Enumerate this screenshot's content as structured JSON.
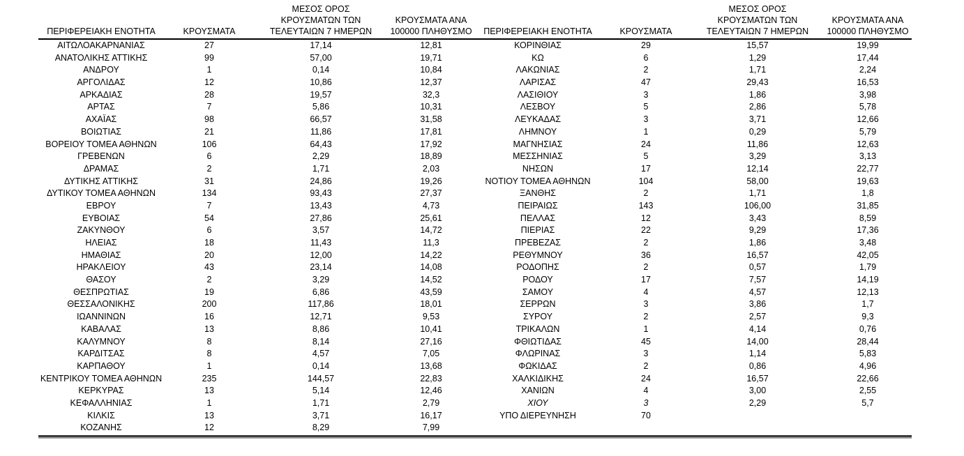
{
  "table": {
    "columns": [
      {
        "id": "region",
        "label_lines": [
          "ΠΕΡΙΦΕΡΕΙΑΚΗ ΕΝΟΤΗΤΑ"
        ]
      },
      {
        "id": "cases",
        "label_lines": [
          "ΚΡΟΥΣΜΑΤΑ"
        ]
      },
      {
        "id": "avg7",
        "label_lines": [
          "ΜΕΣΟΣ ΟΡΟΣ",
          "ΚΡΟΥΣΜΑΤΩΝ ΤΩΝ",
          "ΤΕΛΕΥΤΑΙΩΝ 7 ΗΜΕΡΩΝ"
        ]
      },
      {
        "id": "per100k",
        "label_lines": [
          "ΚΡΟΥΣΜΑΤΑ ΑΝΑ",
          "100000 ΠΛΗΘΥΣΜΟ"
        ]
      }
    ],
    "left_rows": [
      {
        "name": "ΑΙΤΩΛΟΑΚΑΡΝΑΝΙΑΣ",
        "cases": "27",
        "avg7": "17,14",
        "per100k": "12,81"
      },
      {
        "name": "ΑΝΑΤΟΛΙΚΗΣ ΑΤΤΙΚΗΣ",
        "cases": "99",
        "avg7": "57,00",
        "per100k": "19,71"
      },
      {
        "name": "ΑΝΔΡΟΥ",
        "cases": "1",
        "avg7": "0,14",
        "per100k": "10,84"
      },
      {
        "name": "ΑΡΓΟΛΙΔΑΣ",
        "cases": "12",
        "avg7": "10,86",
        "per100k": "12,37"
      },
      {
        "name": "ΑΡΚΑΔΙΑΣ",
        "cases": "28",
        "avg7": "19,57",
        "per100k": "32,3"
      },
      {
        "name": "ΑΡΤΑΣ",
        "cases": "7",
        "avg7": "5,86",
        "per100k": "10,31"
      },
      {
        "name": "ΑΧΑΪΑΣ",
        "cases": "98",
        "avg7": "66,57",
        "per100k": "31,58"
      },
      {
        "name": "ΒΟΙΩΤΙΑΣ",
        "cases": "21",
        "avg7": "11,86",
        "per100k": "17,81"
      },
      {
        "name": "ΒΟΡΕΙΟΥ ΤΟΜΕΑ ΑΘΗΝΩΝ",
        "cases": "106",
        "avg7": "64,43",
        "per100k": "17,92"
      },
      {
        "name": "ΓΡΕΒΕΝΩΝ",
        "cases": "6",
        "avg7": "2,29",
        "per100k": "18,89"
      },
      {
        "name": "ΔΡΑΜΑΣ",
        "cases": "2",
        "avg7": "1,71",
        "per100k": "2,03"
      },
      {
        "name": "ΔΥΤΙΚΗΣ ΑΤΤΙΚΗΣ",
        "cases": "31",
        "avg7": "24,86",
        "per100k": "19,26"
      },
      {
        "name": "ΔΥΤΙΚΟΥ ΤΟΜΕΑ ΑΘΗΝΩΝ",
        "cases": "134",
        "avg7": "93,43",
        "per100k": "27,37"
      },
      {
        "name": "ΕΒΡΟΥ",
        "cases": "7",
        "avg7": "13,43",
        "per100k": "4,73"
      },
      {
        "name": "ΕΥΒΟΙΑΣ",
        "cases": "54",
        "avg7": "27,86",
        "per100k": "25,61"
      },
      {
        "name": "ΖΑΚΥΝΘΟΥ",
        "cases": "6",
        "avg7": "3,57",
        "per100k": "14,72"
      },
      {
        "name": "ΗΛΕΙΑΣ",
        "cases": "18",
        "avg7": "11,43",
        "per100k": "11,3"
      },
      {
        "name": "ΗΜΑΘΙΑΣ",
        "cases": "20",
        "avg7": "12,00",
        "per100k": "14,22"
      },
      {
        "name": "ΗΡΑΚΛΕΙΟΥ",
        "cases": "43",
        "avg7": "23,14",
        "per100k": "14,08"
      },
      {
        "name": "ΘΑΣΟΥ",
        "cases": "2",
        "avg7": "3,29",
        "per100k": "14,52"
      },
      {
        "name": "ΘΕΣΠΡΩΤΙΑΣ",
        "cases": "19",
        "avg7": "6,86",
        "per100k": "43,59"
      },
      {
        "name": "ΘΕΣΣΑΛΟΝΙΚΗΣ",
        "cases": "200",
        "avg7": "117,86",
        "per100k": "18,01"
      },
      {
        "name": "ΙΩΑΝΝΙΝΩΝ",
        "cases": "16",
        "avg7": "12,71",
        "per100k": "9,53"
      },
      {
        "name": "ΚΑΒΑΛΑΣ",
        "cases": "13",
        "avg7": "8,86",
        "per100k": "10,41"
      },
      {
        "name": "ΚΑΛΥΜΝΟΥ",
        "cases": "8",
        "avg7": "8,14",
        "per100k": "27,16"
      },
      {
        "name": "ΚΑΡΔΙΤΣΑΣ",
        "cases": "8",
        "avg7": "4,57",
        "per100k": "7,05"
      },
      {
        "name": "ΚΑΡΠΑΘΟΥ",
        "cases": "1",
        "avg7": "0,14",
        "per100k": "13,68"
      },
      {
        "name": "ΚΕΝΤΡΙΚΟΥ ΤΟΜΕΑ ΑΘΗΝΩΝ",
        "cases": "235",
        "avg7": "144,57",
        "per100k": "22,83"
      },
      {
        "name": "ΚΕΡΚΥΡΑΣ",
        "cases": "13",
        "avg7": "5,14",
        "per100k": "12,46"
      },
      {
        "name": "ΚΕΦΑΛΛΗΝΙΑΣ",
        "cases": "1",
        "avg7": "1,71",
        "per100k": "2,79"
      },
      {
        "name": "ΚΙΛΚΙΣ",
        "cases": "13",
        "avg7": "3,71",
        "per100k": "16,17"
      },
      {
        "name": "ΚΟΖΑΝΗΣ",
        "cases": "12",
        "avg7": "8,29",
        "per100k": "7,99"
      }
    ],
    "right_rows": [
      {
        "name": "ΚΟΡΙΝΘΙΑΣ",
        "cases": "29",
        "avg7": "15,57",
        "per100k": "19,99"
      },
      {
        "name": "ΚΩ",
        "cases": "6",
        "avg7": "1,29",
        "per100k": "17,44"
      },
      {
        "name": "ΛΑΚΩΝΙΑΣ",
        "cases": "2",
        "avg7": "1,71",
        "per100k": "2,24"
      },
      {
        "name": "ΛΑΡΙΣΑΣ",
        "cases": "47",
        "avg7": "29,43",
        "per100k": "16,53"
      },
      {
        "name": "ΛΑΣΙΘΙΟΥ",
        "cases": "3",
        "avg7": "1,86",
        "per100k": "3,98"
      },
      {
        "name": "ΛΕΣΒΟΥ",
        "cases": "5",
        "avg7": "2,86",
        "per100k": "5,78"
      },
      {
        "name": "ΛΕΥΚΑΔΑΣ",
        "cases": "3",
        "avg7": "3,71",
        "per100k": "12,66"
      },
      {
        "name": "ΛΗΜΝΟΥ",
        "cases": "1",
        "avg7": "0,29",
        "per100k": "5,79"
      },
      {
        "name": "ΜΑΓΝΗΣΙΑΣ",
        "cases": "24",
        "avg7": "11,86",
        "per100k": "12,63"
      },
      {
        "name": "ΜΕΣΣΗΝΙΑΣ",
        "cases": "5",
        "avg7": "3,29",
        "per100k": "3,13"
      },
      {
        "name": "ΝΗΣΩΝ",
        "cases": "17",
        "avg7": "12,14",
        "per100k": "22,77"
      },
      {
        "name": "ΝΟΤΙΟΥ ΤΟΜΕΑ ΑΘΗΝΩΝ",
        "cases": "104",
        "avg7": "58,00",
        "per100k": "19,63"
      },
      {
        "name": "ΞΑΝΘΗΣ",
        "cases": "2",
        "avg7": "1,71",
        "per100k": "1,8"
      },
      {
        "name": "ΠΕΙΡΑΙΩΣ",
        "cases": "143",
        "avg7": "106,00",
        "per100k": "31,85"
      },
      {
        "name": "ΠΕΛΛΑΣ",
        "cases": "12",
        "avg7": "3,43",
        "per100k": "8,59"
      },
      {
        "name": "ΠΙΕΡΙΑΣ",
        "cases": "22",
        "avg7": "9,29",
        "per100k": "17,36"
      },
      {
        "name": "ΠΡΕΒΕΖΑΣ",
        "cases": "2",
        "avg7": "1,86",
        "per100k": "3,48"
      },
      {
        "name": "ΡΕΘΥΜΝΟΥ",
        "cases": "36",
        "avg7": "16,57",
        "per100k": "42,05"
      },
      {
        "name": "ΡΟΔΟΠΗΣ",
        "cases": "2",
        "avg7": "0,57",
        "per100k": "1,79"
      },
      {
        "name": "ΡΟΔΟΥ",
        "cases": "17",
        "avg7": "7,57",
        "per100k": "14,19"
      },
      {
        "name": "ΣΑΜΟΥ",
        "cases": "4",
        "avg7": "4,57",
        "per100k": "12,13"
      },
      {
        "name": "ΣΕΡΡΩΝ",
        "cases": "3",
        "avg7": "3,86",
        "per100k": "1,7"
      },
      {
        "name": "ΣΥΡΟΥ",
        "cases": "2",
        "avg7": "2,57",
        "per100k": "9,3"
      },
      {
        "name": "ΤΡΙΚΑΛΩΝ",
        "cases": "1",
        "avg7": "4,14",
        "per100k": "0,76"
      },
      {
        "name": "ΦΘΙΩΤΙΔΑΣ",
        "cases": "45",
        "avg7": "14,00",
        "per100k": "28,44"
      },
      {
        "name": "ΦΛΩΡΙΝΑΣ",
        "cases": "3",
        "avg7": "1,14",
        "per100k": "5,83"
      },
      {
        "name": "ΦΩΚΙΔΑΣ",
        "cases": "2",
        "avg7": "0,86",
        "per100k": "4,96"
      },
      {
        "name": "ΧΑΛΚΙΔΙΚΗΣ",
        "cases": "24",
        "avg7": "16,57",
        "per100k": "22,66"
      },
      {
        "name": "ΧΑΝΙΩΝ",
        "cases": "4",
        "avg7": "3,00",
        "per100k": "2,55"
      },
      {
        "name": "ΧΙΟΥ",
        "cases": "3",
        "avg7": "2,29",
        "per100k": "5,7",
        "italic": true
      },
      {
        "name": "ΥΠΟ ΔΙΕΡΕΥΝΗΣΗ",
        "cases": "70",
        "avg7": "",
        "per100k": ""
      }
    ]
  }
}
